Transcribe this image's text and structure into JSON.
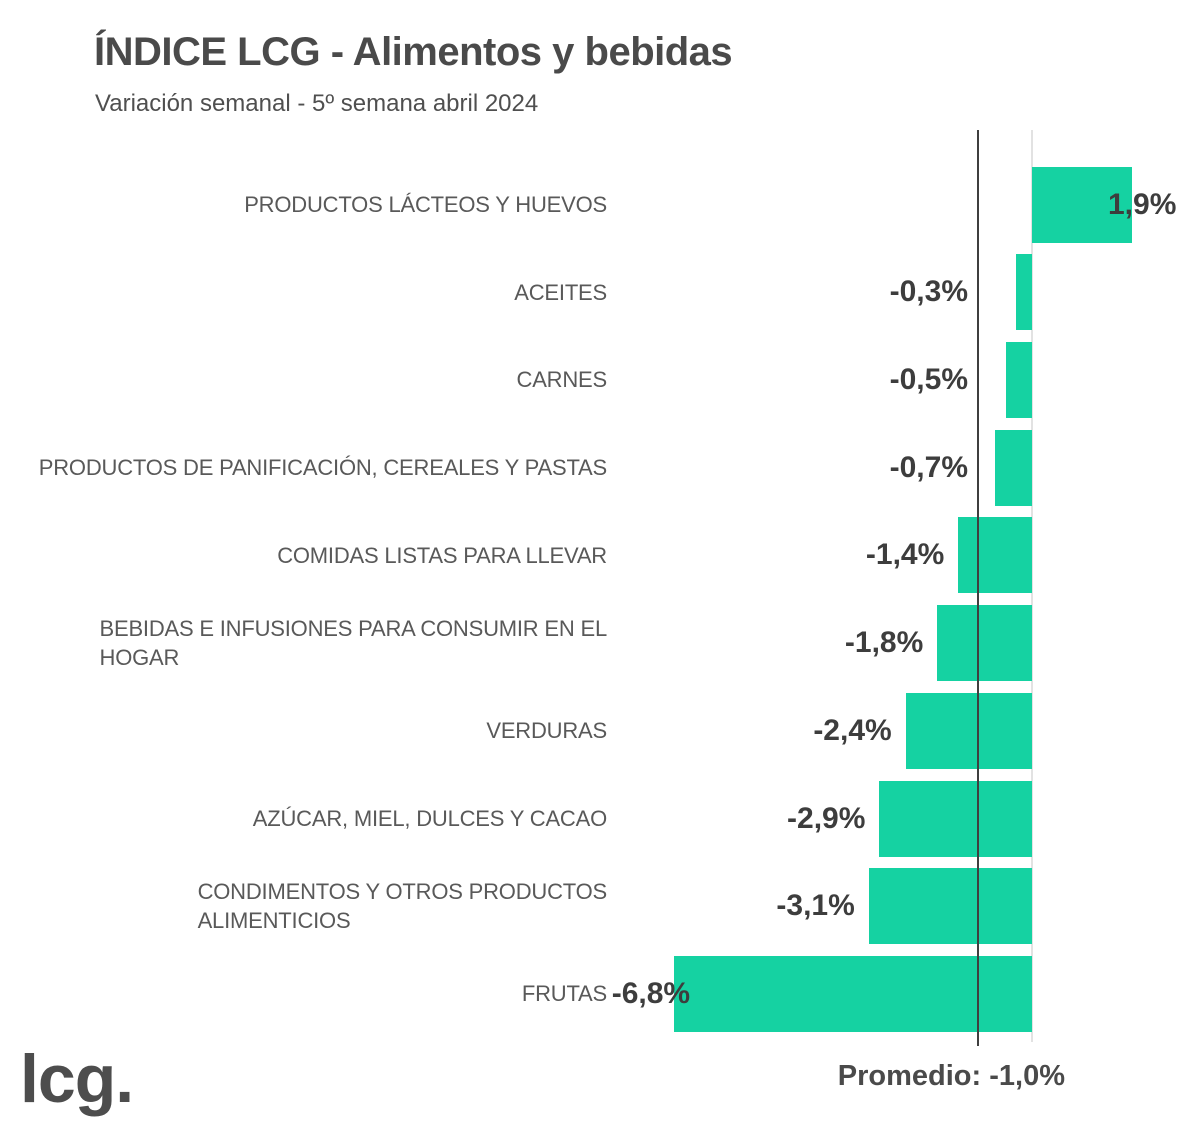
{
  "header": {
    "title": "ÍNDICE LCG - Alimentos y bebidas",
    "subtitle": "Variación semanal - 5º semana abril 2024"
  },
  "footer": {
    "brand_logo": "lcg.",
    "average_caption": "Promedio: -1,0%"
  },
  "colors": {
    "bar": "#15d2a2",
    "title_text": "#4a4a4a",
    "category_text": "#595959",
    "value_text": "#3d3d3d",
    "average_line": "#3f3f3f",
    "zero_axis": "#e2e2e2"
  },
  "chart_data": {
    "type": "bar",
    "orientation": "horizontal",
    "title": "ÍNDICE LCG - Alimentos y bebidas",
    "subtitle": "Variación semanal - 5º semana abril 2024",
    "unit": "%",
    "categories": [
      "PRODUCTOS LÁCTEOS Y HUEVOS",
      "ACEITES",
      "CARNES",
      "PRODUCTOS DE PANIFICACIÓN, CEREALES Y PASTAS",
      "COMIDAS LISTAS PARA LLEVAR",
      "BEBIDAS E INFUSIONES PARA CONSUMIR EN EL\nHOGAR",
      "VERDURAS",
      "AZÚCAR, MIEL, DULCES Y CACAO",
      "CONDIMENTOS Y OTROS PRODUCTOS\nALIMENTICIOS",
      "FRUTAS"
    ],
    "values": [
      1.9,
      -0.3,
      -0.5,
      -0.7,
      -1.4,
      -1.8,
      -2.4,
      -2.9,
      -3.1,
      -6.8
    ],
    "value_labels": [
      "1,9%",
      "-0,3%",
      "-0,5%",
      "-0,7%",
      "-1,4%",
      "-1,8%",
      "-2,4%",
      "-2,9%",
      "-3,1%",
      "-6,8%"
    ],
    "average": -1.0,
    "average_label": "Promedio: -1,0%",
    "xlim": [
      -7.0,
      3.2
    ],
    "grid": false,
    "value_axis_visible": false,
    "reference_lines": [
      {
        "name": "zero",
        "value": 0
      },
      {
        "name": "promedio",
        "value": -1.0
      }
    ]
  }
}
